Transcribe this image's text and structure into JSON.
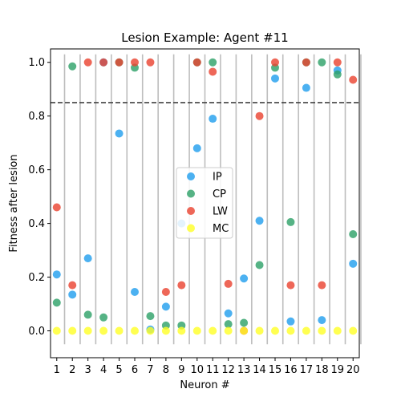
{
  "chart_data": {
    "type": "scatter",
    "title": "Lesion Example: Agent #11",
    "xlabel": "Neuron #",
    "ylabel": "Fitness after lesion",
    "x": [
      1,
      2,
      3,
      4,
      5,
      6,
      7,
      8,
      9,
      10,
      11,
      12,
      13,
      14,
      15,
      16,
      17,
      18,
      19,
      20
    ],
    "xlim": [
      0.6,
      20.4
    ],
    "ylim": [
      -0.1,
      1.05
    ],
    "yticks": [
      0.0,
      0.2,
      0.4,
      0.6,
      0.8,
      1.0
    ],
    "ytick_labels": [
      "0.0",
      "0.2",
      "0.4",
      "0.6",
      "0.8",
      "1.0"
    ],
    "threshold": 0.85,
    "grid": "vertical-lines-between-neurons",
    "legend_position": "center",
    "series": [
      {
        "name": "IP",
        "color": "#1f9ded",
        "values": [
          0.21,
          0.135,
          0.27,
          1.0,
          0.735,
          0.145,
          0.005,
          0.09,
          0.4,
          0.68,
          0.79,
          0.065,
          0.195,
          0.41,
          0.94,
          0.035,
          0.905,
          0.04,
          0.97,
          0.25
        ]
      },
      {
        "name": "CP",
        "color": "#2ca066",
        "values": [
          0.105,
          0.985,
          0.06,
          0.05,
          1.0,
          0.98,
          0.055,
          0.02,
          0.02,
          1.0,
          1.0,
          0.025,
          0.03,
          0.245,
          0.98,
          0.405,
          1.0,
          1.0,
          0.955,
          0.36
        ]
      },
      {
        "name": "LW",
        "color": "#ea412e",
        "values": [
          0.46,
          0.17,
          1.0,
          1.0,
          1.0,
          1.0,
          1.0,
          0.145,
          0.17,
          1.0,
          0.965,
          0.175,
          0.0,
          0.8,
          1.0,
          0.17,
          1.0,
          0.17,
          1.0,
          0.935
        ]
      },
      {
        "name": "MC",
        "color": "#ffff26",
        "values": [
          0,
          0,
          0,
          0,
          0,
          0,
          0,
          0,
          0,
          0,
          0,
          0,
          0,
          0,
          0,
          0,
          0,
          0,
          0,
          0
        ]
      }
    ]
  }
}
